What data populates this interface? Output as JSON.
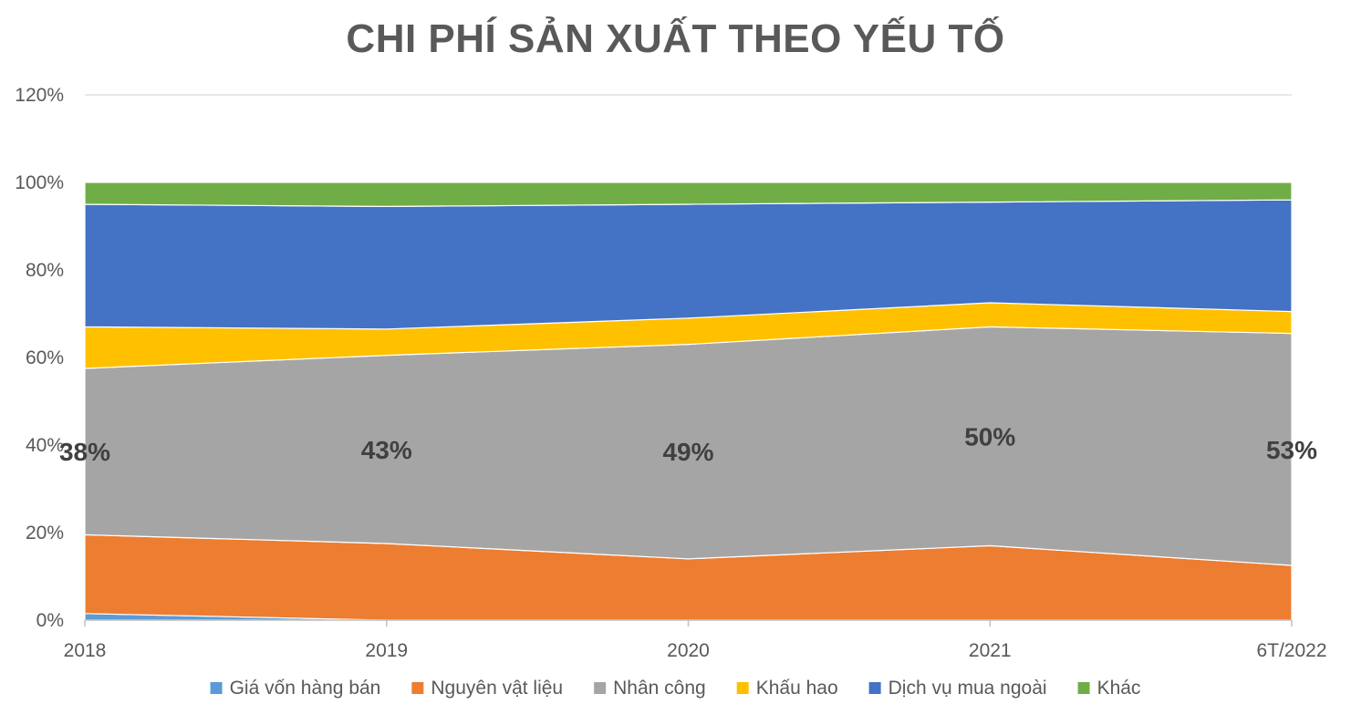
{
  "chart_data": {
    "type": "area",
    "stacked": "percent",
    "title": "CHI PHÍ SẢN XUẤT THEO YẾU TỐ",
    "xlabel": "",
    "ylabel": "",
    "categories": [
      "2018",
      "2019",
      "2020",
      "2021",
      "6T/2022"
    ],
    "ylim": [
      0,
      120
    ],
    "yticks": [
      "0%",
      "20%",
      "40%",
      "60%",
      "80%",
      "100%",
      "120%"
    ],
    "grid": true,
    "legend_position": "bottom",
    "series": [
      {
        "name": "Giá vốn hàng bán",
        "color": "#5B9BD5",
        "values": [
          1.5,
          0,
          0,
          0,
          0
        ]
      },
      {
        "name": "Nguyên vật liệu",
        "color": "#ED7D31",
        "values": [
          18,
          17.5,
          14,
          17,
          12.5
        ]
      },
      {
        "name": "Nhân công",
        "color": "#A5A5A5",
        "values": [
          38,
          43,
          49,
          50,
          53
        ]
      },
      {
        "name": "Khấu hao",
        "color": "#FFC000",
        "values": [
          9.5,
          6,
          6,
          5.5,
          5
        ]
      },
      {
        "name": "Dịch vụ mua ngoài",
        "color": "#4472C4",
        "values": [
          28,
          28,
          26,
          23,
          25.5
        ]
      },
      {
        "name": "Khác",
        "color": "#70AD47",
        "values": [
          5,
          5.5,
          5,
          4.5,
          4
        ]
      }
    ],
    "data_labels": {
      "series": "Nhân công",
      "texts": [
        "38%",
        "43%",
        "49%",
        "50%",
        "53%"
      ]
    }
  }
}
